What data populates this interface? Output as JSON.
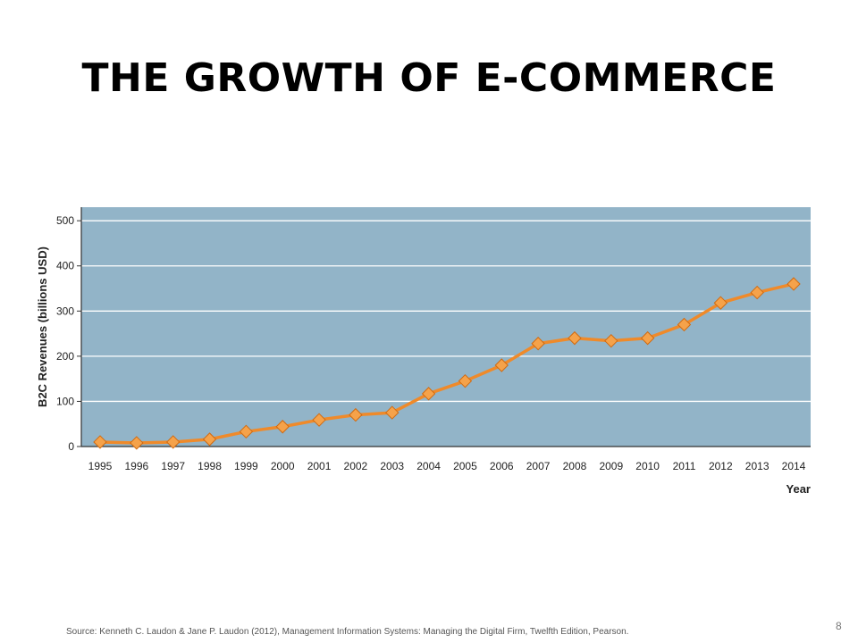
{
  "slide": {
    "title": "THE GROWTH OF E-COMMERCE",
    "source": "Source: Kenneth C. Laudon & Jane P. Laudon (2012), Management Information  Systems: Managing the Digital Firm, Twelfth Edition, Pearson.",
    "page_number": "8"
  },
  "chart_data": {
    "type": "line",
    "title": "",
    "xlabel": "Year",
    "ylabel": "B2C Revenues (billions USD)",
    "categories": [
      "1995",
      "1996",
      "1997",
      "1998",
      "1999",
      "2000",
      "2001",
      "2002",
      "2003",
      "2004",
      "2005",
      "2006",
      "2007",
      "2008",
      "2009",
      "2010",
      "2011",
      "2012",
      "2013",
      "2014"
    ],
    "series": [
      {
        "values": [
          10,
          8,
          10,
          16,
          33,
          44,
          59,
          70,
          75,
          117,
          145,
          180,
          228,
          240,
          234,
          240,
          270,
          318,
          341,
          360
        ]
      }
    ],
    "y_ticks": [
      0,
      100,
      200,
      300,
      400,
      500
    ],
    "ylim": [
      0,
      530
    ],
    "grid": true,
    "colors": {
      "plot_background": "#92b4c8",
      "gridline": "#ffffff",
      "line": "#ef8a2a",
      "marker": "#f5a24a"
    }
  }
}
